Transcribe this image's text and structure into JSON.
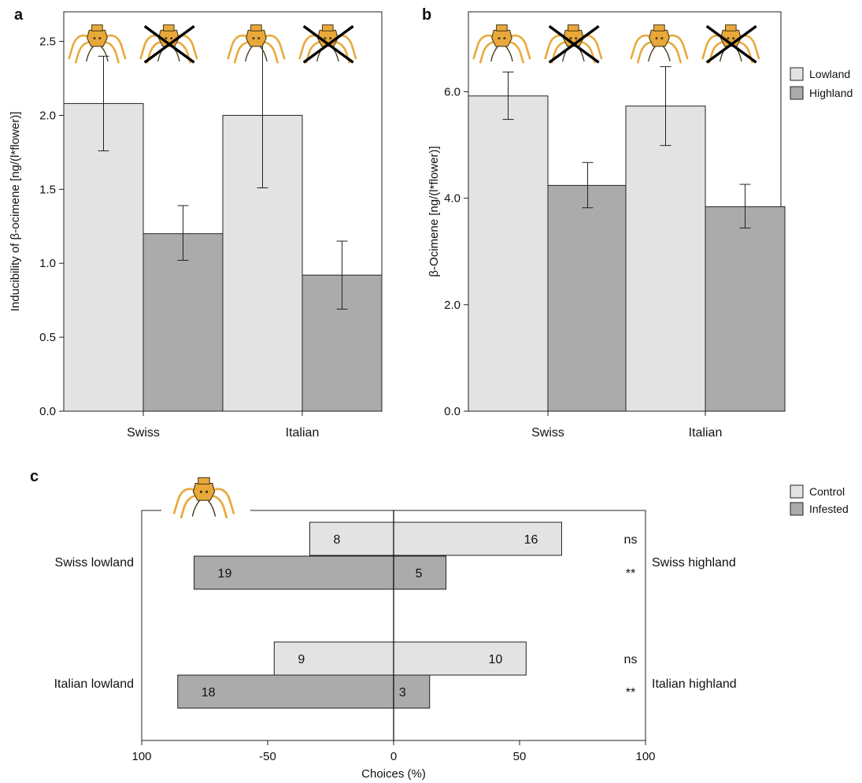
{
  "colors": {
    "lowland": "#e3e3e3",
    "highland": "#ababab",
    "control": "#e3e3e3",
    "infested": "#ababab",
    "outline": "#222222",
    "spider_body": "#e8a93a",
    "spider_outline": "#4a3a1a"
  },
  "icons": [
    "spider-icon",
    "crossed-spider-icon"
  ],
  "chart_data": [
    {
      "panel": "a",
      "type": "bar",
      "ylabel": "Inducibility of β-ocimene [ng/(l*flower)]",
      "xlabel": "",
      "categories": [
        "Swiss",
        "Italian"
      ],
      "ylim": [
        0,
        2.7
      ],
      "yticks": [
        "0.0",
        "0.5",
        "1.0",
        "1.5",
        "2.0",
        "2.5"
      ],
      "ytick_values": [
        0,
        0.5,
        1.0,
        1.5,
        2.0,
        2.5
      ],
      "series": [
        {
          "name": "Lowland",
          "values": [
            2.08,
            2.0
          ],
          "err_low": [
            1.76,
            1.51
          ],
          "err_high": [
            2.4,
            2.49
          ]
        },
        {
          "name": "Highland",
          "values": [
            1.2,
            0.92
          ],
          "err_low": [
            1.02,
            0.69
          ],
          "err_high": [
            1.39,
            1.15
          ]
        }
      ]
    },
    {
      "panel": "b",
      "type": "bar",
      "ylabel": "β-Ocimene [ng/(l*flower)]",
      "xlabel": "",
      "categories": [
        "Swiss",
        "Italian"
      ],
      "ylim": [
        0,
        7.5
      ],
      "yticks": [
        "0.0",
        "2.0",
        "4.0",
        "6.0"
      ],
      "ytick_values": [
        0,
        2,
        4,
        6
      ],
      "legend": [
        "Lowland",
        "Highland"
      ],
      "series": [
        {
          "name": "Lowland",
          "values": [
            5.92,
            5.73
          ],
          "err_low": [
            5.48,
            4.99
          ],
          "err_high": [
            6.37,
            6.47
          ]
        },
        {
          "name": "Highland",
          "values": [
            4.24,
            3.84
          ],
          "err_low": [
            3.82,
            3.44
          ],
          "err_high": [
            4.67,
            4.26
          ]
        }
      ]
    },
    {
      "panel": "c",
      "type": "bar",
      "orientation": "horizontal",
      "xlabel": "Choices (%)",
      "xlim": [
        -100,
        100
      ],
      "xticks": [
        "100",
        "50",
        "0",
        "50",
        "100"
      ],
      "xtick_values": [
        -100,
        -50,
        0,
        50,
        100
      ],
      "legend": [
        "Control",
        "Infested"
      ],
      "groups": [
        {
          "left_label": "Swiss lowland",
          "right_label": "Swiss highland",
          "bars": [
            {
              "series": "Control",
              "left_pct": 33.3,
              "right_pct": 66.7,
              "left_n": "8",
              "right_n": "16",
              "sig": "ns"
            },
            {
              "series": "Infested",
              "left_pct": 79.2,
              "right_pct": 20.8,
              "left_n": "19",
              "right_n": "5",
              "sig": "**"
            }
          ]
        },
        {
          "left_label": "Italian lowland",
          "right_label": "Italian highland",
          "bars": [
            {
              "series": "Control",
              "left_pct": 47.4,
              "right_pct": 52.6,
              "left_n": "9",
              "right_n": "10",
              "sig": "ns"
            },
            {
              "series": "Infested",
              "left_pct": 85.7,
              "right_pct": 14.3,
              "left_n": "18",
              "right_n": "3",
              "sig": "**"
            }
          ]
        }
      ]
    }
  ]
}
